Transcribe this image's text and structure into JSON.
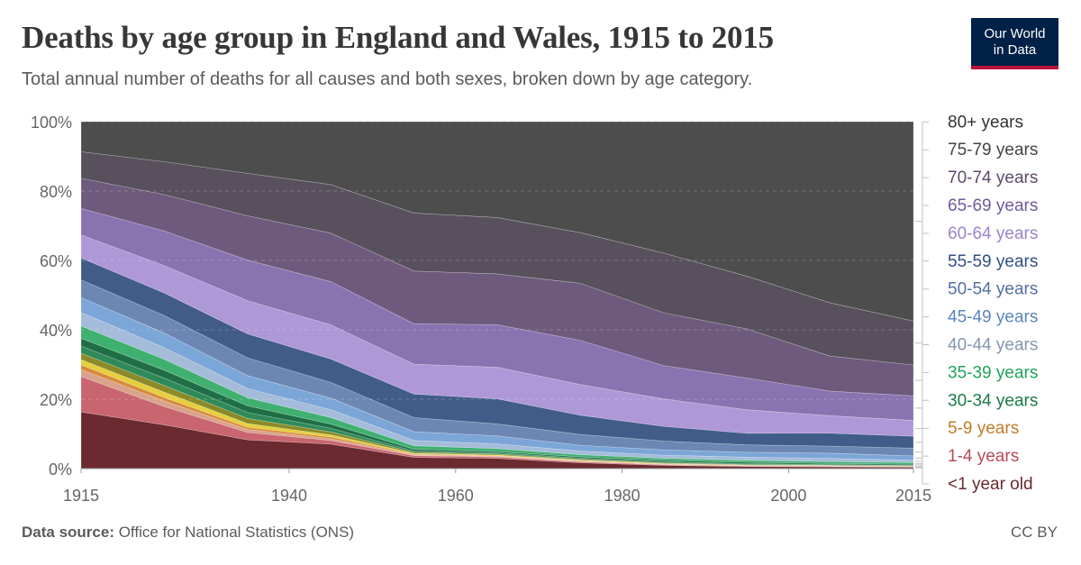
{
  "header": {
    "title": "Deaths by age group in England and Wales, 1915 to 2015",
    "subtitle": "Total annual number of deaths for all causes and both sexes, broken down by age category."
  },
  "logo": {
    "line1": "Our World",
    "line2": "in Data",
    "bg_color": "#002147",
    "accent_color": "#be123c"
  },
  "footer": {
    "source_label": "Data source:",
    "source_text": " Office for National Statistics (ONS)",
    "license": "CC BY"
  },
  "chart_data": {
    "type": "area",
    "stacked_percent": true,
    "x": [
      1915,
      1925,
      1935,
      1945,
      1955,
      1965,
      1975,
      1985,
      1995,
      2005,
      2015
    ],
    "x_ticks": [
      1915,
      1940,
      1960,
      1980,
      2000,
      2015
    ],
    "y_ticks": [
      "0%",
      "20%",
      "40%",
      "60%",
      "80%",
      "100%"
    ],
    "ylim": [
      0,
      100
    ],
    "grid": "horizontal dashed",
    "series": [
      {
        "name": "<1 year old",
        "color": "#6b2a2f",
        "label_color": "#6b2a2f",
        "values": [
          16.0,
          12.0,
          7.8,
          6.8,
          3.2,
          2.8,
          1.6,
          0.9,
          0.6,
          0.5,
          0.4
        ]
      },
      {
        "name": "1-4 years",
        "color": "#c9656f",
        "label_color": "#b94a57",
        "values": [
          10.0,
          5.0,
          2.0,
          1.0,
          0.5,
          0.4,
          0.3,
          0.2,
          0.15,
          0.1,
          0.1
        ]
      },
      {
        "name": "",
        "color": "#d9a28b",
        "label_color": "#a66b4f",
        "values": [
          2.0,
          1.5,
          0.8,
          0.5,
          0.2,
          0.2,
          0.15,
          0.1,
          0.1,
          0.08,
          0.05
        ]
      },
      {
        "name": "5-9 years",
        "color": "#d88a3a",
        "label_color": "#c17c2b",
        "values": [
          1.3,
          1.0,
          0.6,
          0.5,
          0.2,
          0.15,
          0.1,
          0.08,
          0.06,
          0.05,
          0.04
        ]
      },
      {
        "name": "",
        "color": "#e5cf3d",
        "label_color": "#a18e12",
        "values": [
          1.5,
          1.5,
          1.0,
          0.6,
          0.25,
          0.2,
          0.2,
          0.15,
          0.1,
          0.1,
          0.08
        ]
      },
      {
        "name": "",
        "color": "#8a8a28",
        "label_color": "#6e6e1f",
        "values": [
          1.8,
          1.8,
          1.4,
          0.8,
          0.3,
          0.25,
          0.25,
          0.2,
          0.15,
          0.12,
          0.1
        ]
      },
      {
        "name": "",
        "color": "#2e8a58",
        "label_color": "#217346",
        "values": [
          2.0,
          2.0,
          1.6,
          1.0,
          0.35,
          0.3,
          0.3,
          0.3,
          0.25,
          0.2,
          0.15
        ]
      },
      {
        "name": "30-34 years",
        "color": "#1f6e46",
        "label_color": "#1a7a46",
        "values": [
          2.2,
          2.2,
          1.8,
          1.2,
          0.5,
          0.4,
          0.35,
          0.4,
          0.4,
          0.3,
          0.3
        ]
      },
      {
        "name": "35-39 years",
        "color": "#3fb06f",
        "label_color": "#1fa35a",
        "values": [
          3.5,
          3.0,
          2.2,
          1.8,
          1.0,
          0.8,
          0.6,
          0.6,
          0.55,
          0.55,
          0.5
        ]
      },
      {
        "name": "40-44 years",
        "color": "#a4bcd9",
        "label_color": "#8496b1",
        "values": [
          3.8,
          3.2,
          2.5,
          2.2,
          1.5,
          1.3,
          1.0,
          0.9,
          0.9,
          0.9,
          0.7
        ]
      },
      {
        "name": "45-49 years",
        "color": "#7ca5d8",
        "label_color": "#5b86bd",
        "values": [
          4.2,
          4.0,
          3.5,
          3.2,
          2.5,
          2.2,
          1.6,
          1.5,
          1.4,
          1.5,
          1.2
        ]
      },
      {
        "name": "50-54 years",
        "color": "#6c87b3",
        "label_color": "#5470a0",
        "values": [
          5.0,
          4.8,
          4.8,
          4.4,
          4.0,
          3.3,
          3.0,
          2.5,
          2.1,
          2.0,
          2.2
        ]
      },
      {
        "name": "55-59 years",
        "color": "#425c8a",
        "label_color": "#2f4f82",
        "values": [
          6.2,
          6.2,
          6.5,
          6.5,
          6.7,
          6.9,
          5.3,
          4.2,
          3.3,
          3.7,
          3.4
        ]
      },
      {
        "name": "60-64 years",
        "color": "#ae98d8",
        "label_color": "#9b84c9",
        "values": [
          6.5,
          7.5,
          9.0,
          9.5,
          8.5,
          8.7,
          8.5,
          7.8,
          6.7,
          5.0,
          4.5
        ]
      },
      {
        "name": "65-69 years",
        "color": "#8973b0",
        "label_color": "#6f5a9e",
        "values": [
          7.5,
          9.5,
          11.0,
          12.0,
          11.5,
          11.7,
          12.2,
          9.5,
          9.0,
          7.0,
          7.0
        ]
      },
      {
        "name": "70-74 years",
        "color": "#6e5a7c",
        "label_color": "#5d4a6e",
        "values": [
          8.5,
          10.0,
          12.0,
          13.5,
          15.0,
          14.0,
          15.8,
          15.0,
          14.0,
          10.0,
          8.8
        ]
      },
      {
        "name": "75-79 years",
        "color": "#58505c",
        "label_color": "#444444",
        "values": [
          7.5,
          9.0,
          11.5,
          13.5,
          16.5,
          15.5,
          14.0,
          17.0,
          15.0,
          15.2,
          12.5
        ]
      },
      {
        "name": "80+ years",
        "color": "#4d4d4d",
        "label_color": "#333333",
        "values": [
          8.5,
          11.0,
          14.0,
          17.5,
          26.0,
          26.4,
          30.7,
          37.4,
          44.0,
          51.7,
          56.8
        ]
      }
    ]
  }
}
